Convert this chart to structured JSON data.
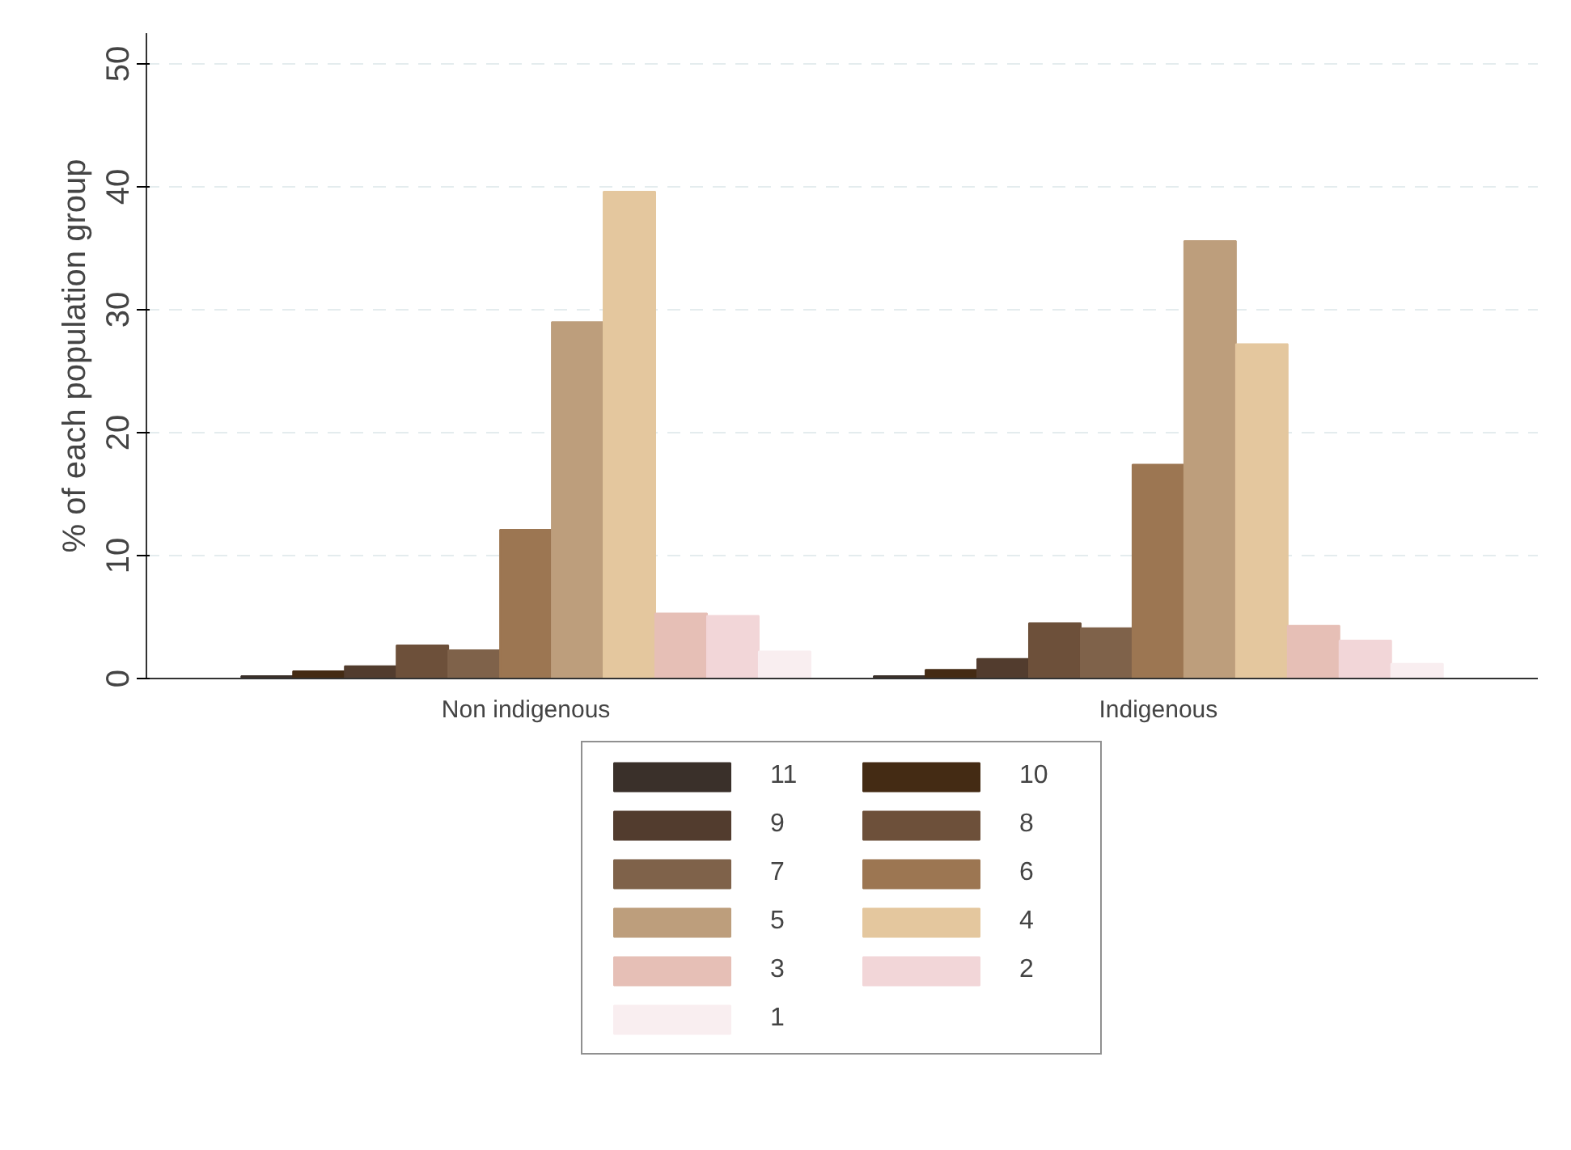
{
  "chart_data": {
    "type": "bar",
    "ylabel": "% of each population group",
    "categories": [
      "Non indigenous",
      "Indigenous"
    ],
    "series": [
      {
        "name": "11",
        "color": "#3a302a",
        "values": [
          0.2,
          0.2
        ]
      },
      {
        "name": "10",
        "color": "#442b14",
        "values": [
          0.6,
          0.7
        ]
      },
      {
        "name": "9",
        "color": "#523c2e",
        "values": [
          1.0,
          1.6
        ]
      },
      {
        "name": "8",
        "color": "#6d503a",
        "values": [
          2.7,
          4.5
        ]
      },
      {
        "name": "7",
        "color": "#7f624a",
        "values": [
          2.3,
          4.1
        ]
      },
      {
        "name": "6",
        "color": "#9c7652",
        "values": [
          12.1,
          17.4
        ]
      },
      {
        "name": "5",
        "color": "#bd9e7c",
        "values": [
          29.0,
          35.6
        ]
      },
      {
        "name": "4",
        "color": "#e4c79e",
        "values": [
          39.6,
          27.2
        ]
      },
      {
        "name": "3",
        "color": "#e6bfb6",
        "values": [
          5.3,
          4.3
        ]
      },
      {
        "name": "2",
        "color": "#f2d6d8",
        "values": [
          5.1,
          3.1
        ]
      },
      {
        "name": "1",
        "color": "#f9eef0",
        "values": [
          2.2,
          1.2
        ]
      }
    ],
    "ylim": [
      0,
      52.5
    ],
    "yticks": [
      0,
      10,
      20,
      30,
      40,
      50
    ],
    "grid": "y",
    "legend": "bottom"
  }
}
